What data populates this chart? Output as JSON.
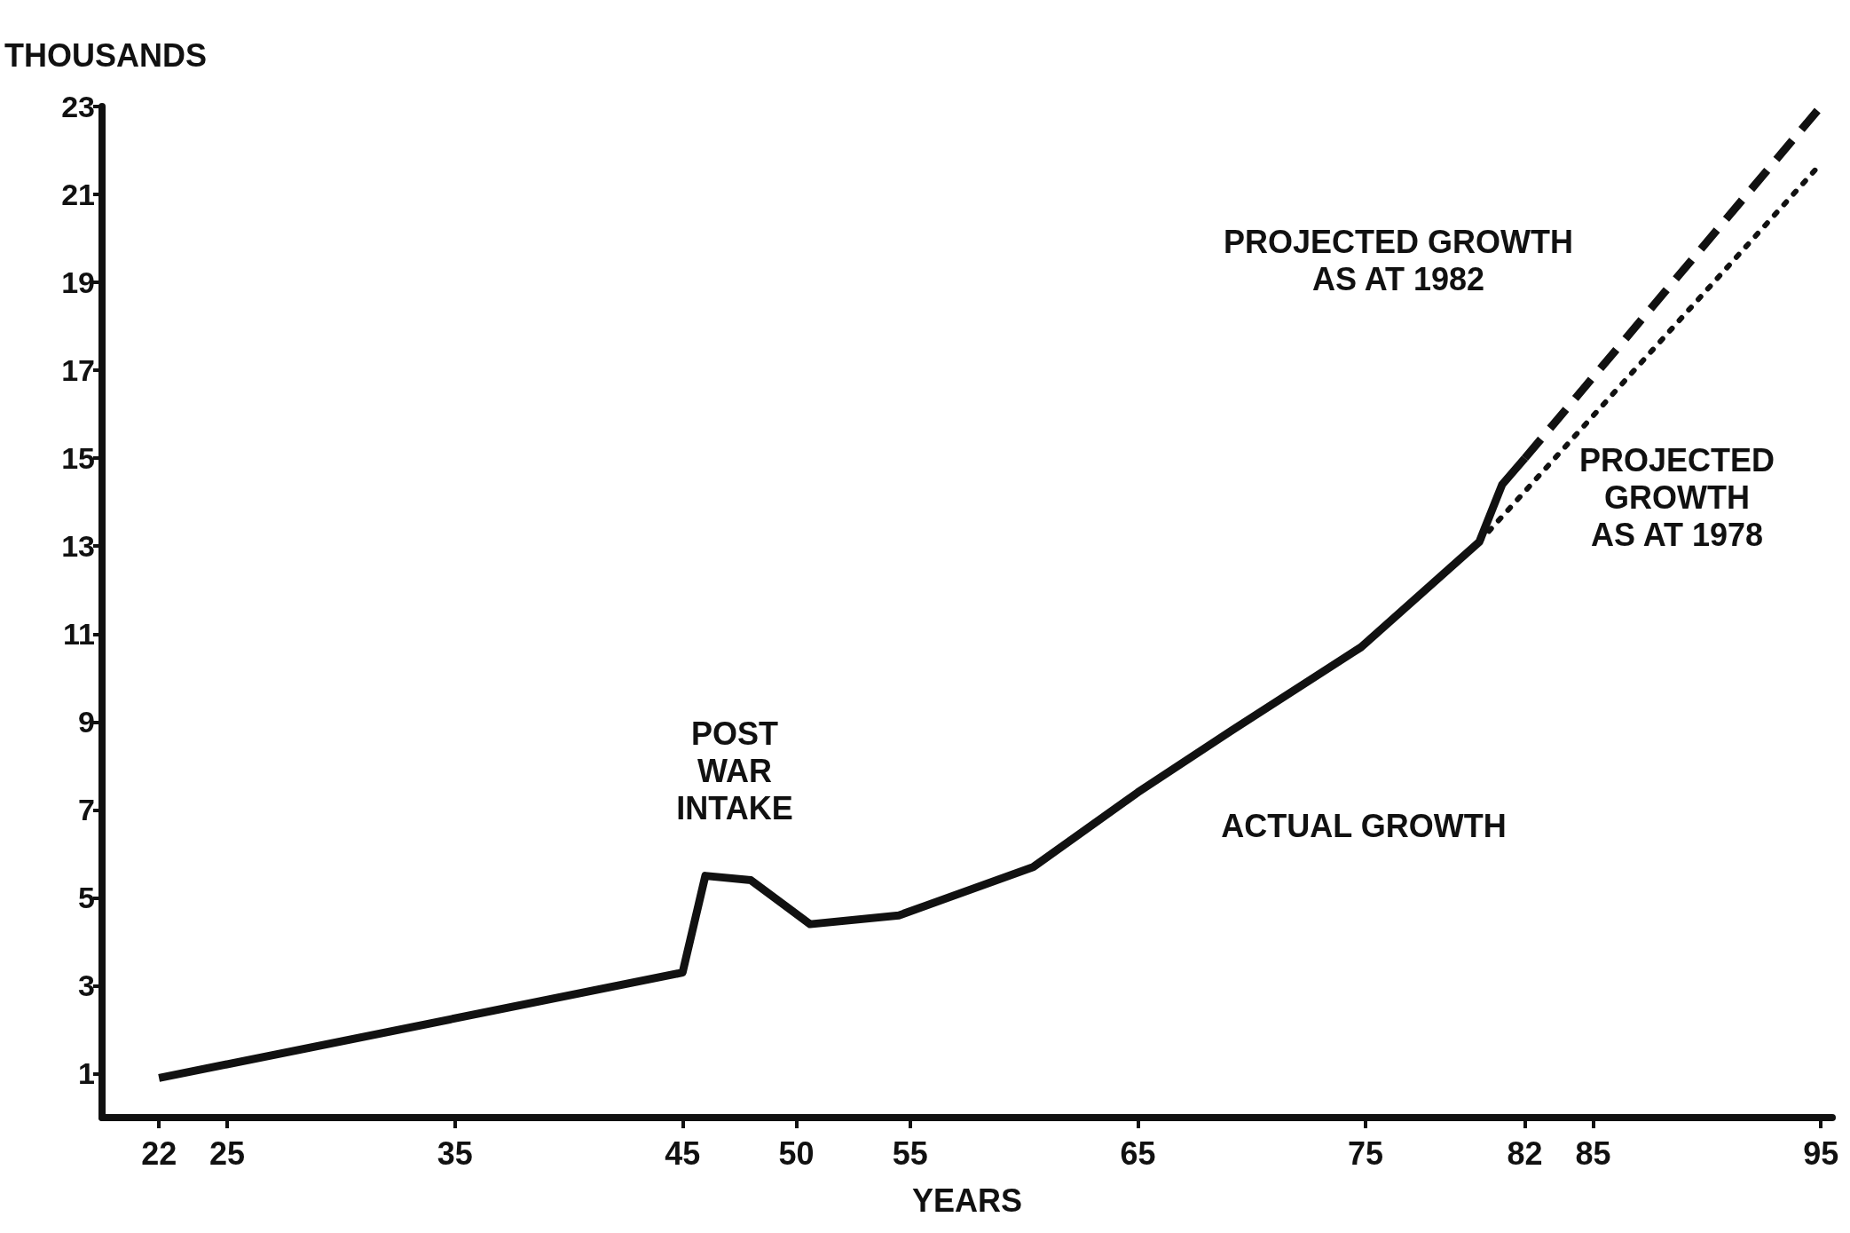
{
  "chart_data": {
    "type": "line",
    "xlabel": "YEARS",
    "ylabel": "THOUSANDS",
    "xlim": [
      19.5,
      95.5
    ],
    "xticks": [
      22,
      25,
      35,
      45,
      50,
      55,
      65,
      75,
      82,
      85,
      95
    ],
    "ylim": [
      0,
      23
    ],
    "yticks": [
      1,
      3,
      5,
      7,
      9,
      11,
      13,
      15,
      17,
      19,
      21,
      23
    ],
    "grid": false,
    "marker": "none",
    "series": [
      {
        "color": "#111111",
        "line_style": "solid",
        "x": [
          22,
          45,
          46,
          48,
          50.6,
          54.5,
          60.4,
          65,
          69.1,
          74.8,
          80,
          81,
          82
        ],
        "values": [
          0.9,
          3.3,
          5.5,
          5.4,
          4.4,
          4.6,
          5.7,
          7.4,
          8.8,
          10.7,
          13.1,
          14.4,
          15.0
        ]
      },
      {
        "color": "#111111",
        "line_style": "dashed",
        "x": [
          82,
          95
        ],
        "values": [
          15.0,
          23.0
        ]
      },
      {
        "color": "#111111",
        "line_style": "dotted",
        "x": [
          80,
          95
        ],
        "values": [
          13.1,
          21.7
        ]
      }
    ],
    "annotations": [
      "POST\nWAR\nINTAKE",
      "ACTUAL GROWTH",
      "PROJECTED GROWTH\nAS AT 1982",
      "PROJECTED\nGROWTH\nAS AT 1978"
    ]
  }
}
